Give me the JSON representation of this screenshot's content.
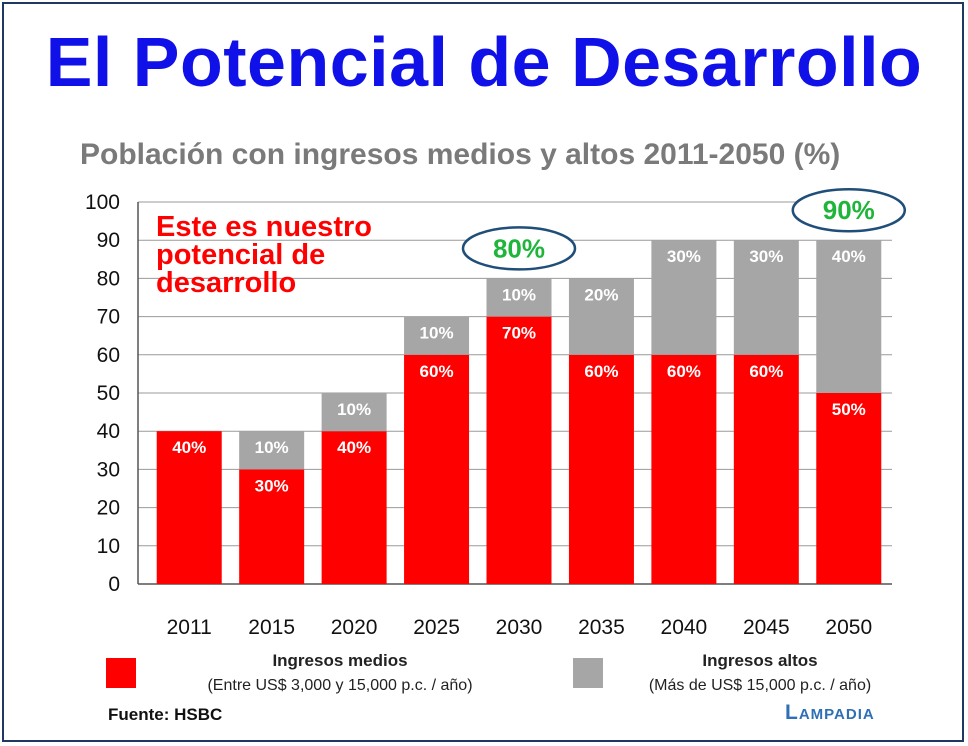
{
  "page_title": "El Potencial de Desarrollo",
  "chart_data": {
    "type": "bar",
    "stacked": true,
    "title": "Población con ingresos medios y altos 2011-2050 (%)",
    "categories": [
      "2011",
      "2015",
      "2020",
      "2025",
      "2030",
      "2035",
      "2040",
      "2045",
      "2050"
    ],
    "ylim": [
      0,
      100
    ],
    "yticks": [
      0,
      10,
      20,
      30,
      40,
      50,
      60,
      70,
      80,
      90,
      100
    ],
    "grid": true,
    "series": [
      {
        "name": "Ingresos medios",
        "values": [
          40,
          30,
          40,
          60,
          70,
          60,
          60,
          60,
          50
        ],
        "labels": [
          "40%",
          "30%",
          "40%",
          "60%",
          "70%",
          "60%",
          "60%",
          "60%",
          "50%"
        ],
        "color": "#ff0000"
      },
      {
        "name": "Ingresos altos",
        "values": [
          0,
          10,
          10,
          10,
          10,
          20,
          30,
          30,
          40
        ],
        "labels": [
          "",
          "10%",
          "10%",
          "10%",
          "10%",
          "20%",
          "30%",
          "30%",
          "40%"
        ],
        "color": "#a6a6a6"
      }
    ],
    "annotations": [
      {
        "text": "Este es nuestro\npotencial de\ndesarrollo",
        "color": "#ff0000"
      },
      {
        "text": "80%",
        "category": "2030",
        "value": 80,
        "color": "#1fb53a"
      },
      {
        "text": "90%",
        "category": "2050",
        "value": 90,
        "color": "#1fb53a"
      }
    ]
  },
  "legend": {
    "medios_label": "Ingresos medios",
    "medios_sub": "(Entre US$ 3,000 y 15,000 p.c. / año)",
    "medios_color": "#ff0000",
    "altos_label": "Ingresos altos",
    "altos_sub": "(Más de US$ 15,000 p.c. / año)",
    "altos_color": "#a6a6a6"
  },
  "source": "Fuente: HSBC",
  "brand": "Lampadia"
}
